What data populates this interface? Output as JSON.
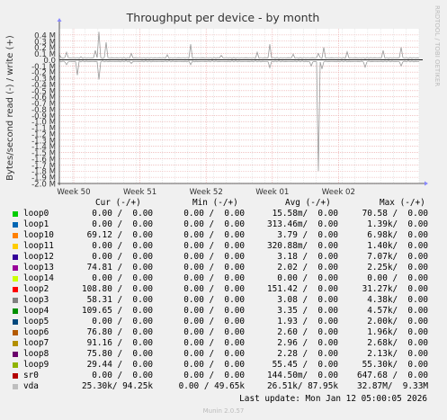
{
  "chart_data": {
    "type": "line",
    "title": "Throughput per device - by month",
    "ylabel": "Bytes/second read (-) / write (+)",
    "ylim": [
      -2.0,
      0.5
    ],
    "y_ticks": [
      "0.4 M",
      "0.3 M",
      "0.2 M",
      "0.1 M",
      "0.0",
      "-0.1 M",
      "-0.2 M",
      "-0.3 M",
      "-0.4 M",
      "-0.5 M",
      "-0.6 M",
      "-0.7 M",
      "-0.8 M",
      "-0.9 M",
      "-1.0 M",
      "-1.1 M",
      "-1.2 M",
      "-1.3 M",
      "-1.4 M",
      "-1.5 M",
      "-1.6 M",
      "-1.7 M",
      "-1.8 M",
      "-1.9 M",
      "-2.0 M"
    ],
    "y_tick_values": [
      0.4,
      0.3,
      0.2,
      0.1,
      0.0,
      -0.1,
      -0.2,
      -0.3,
      -0.4,
      -0.5,
      -0.6,
      -0.7,
      -0.8,
      -0.9,
      -1.0,
      -1.1,
      -1.2,
      -1.3,
      -1.4,
      -1.5,
      -1.6,
      -1.7,
      -1.8,
      -1.9,
      -2.0
    ],
    "x_ticks": [
      "Week 50",
      "Week 51",
      "Week 52",
      "Week 01",
      "Week 02"
    ],
    "x_tick_positions": [
      0.04,
      0.224,
      0.408,
      0.592,
      0.776
    ],
    "grid": true,
    "watermark": "RRDTOOL / TOBI OETIKER",
    "series_vda_write_spikes": [
      [
        0.0,
        0.08
      ],
      [
        0.02,
        0.12
      ],
      [
        0.06,
        0.05
      ],
      [
        0.1,
        0.15
      ],
      [
        0.112,
        0.45
      ],
      [
        0.13,
        0.28
      ],
      [
        0.2,
        0.1
      ],
      [
        0.3,
        0.08
      ],
      [
        0.365,
        0.25
      ],
      [
        0.45,
        0.07
      ],
      [
        0.55,
        0.12
      ],
      [
        0.585,
        0.25
      ],
      [
        0.65,
        0.09
      ],
      [
        0.72,
        0.1
      ],
      [
        0.735,
        0.2
      ],
      [
        0.8,
        0.13
      ],
      [
        0.9,
        0.15
      ],
      [
        0.95,
        0.2
      ]
    ],
    "series_vda_read_spikes": [
      [
        0.02,
        -0.08
      ],
      [
        0.05,
        -0.25
      ],
      [
        0.11,
        -0.32
      ],
      [
        0.2,
        -0.06
      ],
      [
        0.365,
        -0.08
      ],
      [
        0.585,
        -0.13
      ],
      [
        0.7,
        -0.1
      ],
      [
        0.72,
        -1.8
      ],
      [
        0.73,
        -0.15
      ],
      [
        0.85,
        -0.12
      ],
      [
        0.95,
        -0.1
      ]
    ]
  },
  "legend": {
    "headers": {
      "cur": "Cur (-/+)",
      "min": "Min (-/+)",
      "avg": "Avg (-/+)",
      "max": "Max (-/+)"
    },
    "rows": [
      {
        "name": "loop0",
        "color": "#00cc00",
        "cur": "0.00 /  0.00",
        "min": "0.00 /  0.00",
        "avg": "15.58m/  0.00",
        "max": "70.58 /  0.00"
      },
      {
        "name": "loop1",
        "color": "#0066b3",
        "cur": "0.00 /  0.00",
        "min": "0.00 /  0.00",
        "avg": "313.46m/  0.00",
        "max": "1.39k/  0.00"
      },
      {
        "name": "loop10",
        "color": "#ff8000",
        "cur": "69.12 /  0.00",
        "min": "0.00 /  0.00",
        "avg": "3.79 /  0.00",
        "max": "6.98k/  0.00"
      },
      {
        "name": "loop11",
        "color": "#ffcc00",
        "cur": "0.00 /  0.00",
        "min": "0.00 /  0.00",
        "avg": "320.88m/  0.00",
        "max": "1.40k/  0.00"
      },
      {
        "name": "loop12",
        "color": "#330099",
        "cur": "0.00 /  0.00",
        "min": "0.00 /  0.00",
        "avg": "3.18 /  0.00",
        "max": "7.07k/  0.00"
      },
      {
        "name": "loop13",
        "color": "#990099",
        "cur": "74.81 /  0.00",
        "min": "0.00 /  0.00",
        "avg": "2.02 /  0.00",
        "max": "2.25k/  0.00"
      },
      {
        "name": "loop14",
        "color": "#ccff00",
        "cur": "0.00 /  0.00",
        "min": "0.00 /  0.00",
        "avg": "0.00 /  0.00",
        "max": "0.00 /  0.00"
      },
      {
        "name": "loop2",
        "color": "#ff0000",
        "cur": "108.80 /  0.00",
        "min": "0.00 /  0.00",
        "avg": "151.42 /  0.00",
        "max": "31.27k/  0.00"
      },
      {
        "name": "loop3",
        "color": "#808080",
        "cur": "58.31 /  0.00",
        "min": "0.00 /  0.00",
        "avg": "3.08 /  0.00",
        "max": "4.38k/  0.00"
      },
      {
        "name": "loop4",
        "color": "#008f00",
        "cur": "109.65 /  0.00",
        "min": "0.00 /  0.00",
        "avg": "3.35 /  0.00",
        "max": "4.57k/  0.00"
      },
      {
        "name": "loop5",
        "color": "#00487d",
        "cur": "0.00 /  0.00",
        "min": "0.00 /  0.00",
        "avg": "1.93 /  0.00",
        "max": "2.00k/  0.00"
      },
      {
        "name": "loop6",
        "color": "#b35a00",
        "cur": "76.80 /  0.00",
        "min": "0.00 /  0.00",
        "avg": "2.60 /  0.00",
        "max": "1.96k/  0.00"
      },
      {
        "name": "loop7",
        "color": "#b38f00",
        "cur": "91.16 /  0.00",
        "min": "0.00 /  0.00",
        "avg": "2.96 /  0.00",
        "max": "2.68k/  0.00"
      },
      {
        "name": "loop8",
        "color": "#6b006b",
        "cur": "75.80 /  0.00",
        "min": "0.00 /  0.00",
        "avg": "2.28 /  0.00",
        "max": "2.13k/  0.00"
      },
      {
        "name": "loop9",
        "color": "#8fb300",
        "cur": "29.44 /  0.00",
        "min": "0.00 /  0.00",
        "avg": "55.45 /  0.00",
        "max": "55.30k/  0.00"
      },
      {
        "name": "sr0",
        "color": "#b30000",
        "cur": "0.00 /  0.00",
        "min": "0.00 /  0.00",
        "avg": "144.50m/  0.00",
        "max": "647.68 /  0.00"
      },
      {
        "name": "vda",
        "color": "#bebebe",
        "cur": "25.30k/ 94.25k",
        "min": "0.00 / 49.65k",
        "avg": "26.51k/ 87.95k",
        "max": "32.87M/  9.33M"
      }
    ]
  },
  "footer": {
    "last_update": "Last update: Mon Jan 12 05:00:05 2026",
    "munin": "Munin 2.0.57"
  }
}
